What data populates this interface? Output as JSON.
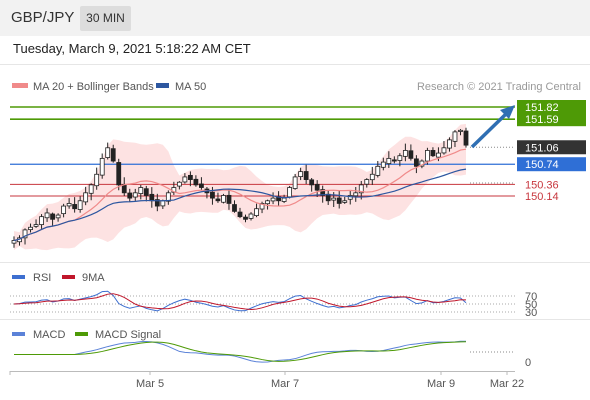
{
  "header": {
    "symbol": "GBP/JPY",
    "timeframe": "30 MIN",
    "datetime": "Tuesday, March 9, 2021 5:18:22 AM CET"
  },
  "colors": {
    "resistance": "#4e9a06",
    "pivot": "#2f6fd6",
    "support": "#c7363d",
    "last_price_bg": "#333333",
    "bollinger_fill": "#fde2e2",
    "ma20": "#f08a8a",
    "ma50": "#2d57a0",
    "candle_up": "#ffffff",
    "candle_down": "#222222",
    "arrow": "#2f6fb3",
    "rsi": "#3d6fd0",
    "rsi_ma": "#c0172b",
    "macd": "#5b82d8",
    "macd_signal": "#4e9a06"
  },
  "legend": {
    "ma20_label": "MA 20 + Bollinger Bands",
    "ma50_label": "MA 50",
    "copyright": "Research © 2021 Trading Central"
  },
  "chart_data": {
    "type": "candlestick",
    "price_range": [
      149.3,
      152.05
    ],
    "levels": {
      "resistance": [
        151.82,
        151.59
      ],
      "last_price": 151.06,
      "pivot": 150.74,
      "support": [
        150.36,
        150.14
      ]
    },
    "x_ticks": [
      "Mar 5",
      "Mar 7",
      "Mar 9",
      "Mar 22"
    ],
    "candles_close_path": [
      149.3,
      149.35,
      149.5,
      149.55,
      149.6,
      149.75,
      149.82,
      149.7,
      149.78,
      149.95,
      150.0,
      149.9,
      150.05,
      150.2,
      150.35,
      150.55,
      150.85,
      151.05,
      150.8,
      150.35,
      150.2,
      150.1,
      150.2,
      150.3,
      150.15,
      150.05,
      149.95,
      150.05,
      150.2,
      150.3,
      150.4,
      150.5,
      150.45,
      150.35,
      150.3,
      150.2,
      150.1,
      150.05,
      150.15,
      150.0,
      149.85,
      149.75,
      149.7,
      149.8,
      149.9,
      150.0,
      150.05,
      150.1,
      150.05,
      150.1,
      150.3,
      150.5,
      150.6,
      150.45,
      150.35,
      150.25,
      150.15,
      150.05,
      150.1,
      150.0,
      150.05,
      150.15,
      150.2,
      150.35,
      150.45,
      150.55,
      150.7,
      150.78,
      150.85,
      150.8,
      150.9,
      151.0,
      150.85,
      150.7,
      150.8,
      151.0,
      150.9,
      150.95,
      151.05,
      151.2,
      151.35,
      151.38,
      151.1
    ],
    "rsi": {
      "title": "RSI",
      "ma_label": "9MA",
      "levels": [
        70,
        50,
        30
      ]
    },
    "macd": {
      "title": "MACD",
      "signal_label": "MACD Signal",
      "zero_label": "0"
    }
  }
}
